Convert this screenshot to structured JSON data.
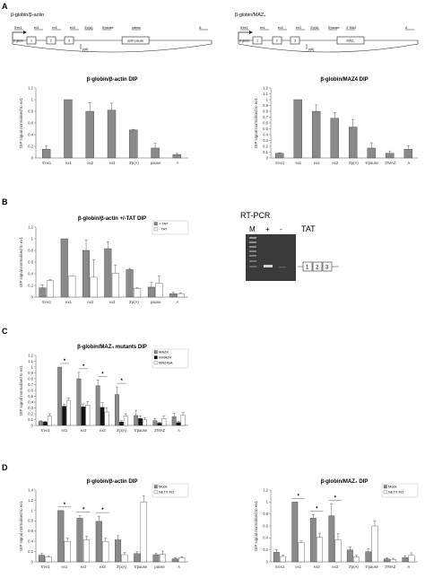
{
  "panels": {
    "A": "A",
    "B": "B",
    "C": "C",
    "D": "D"
  },
  "A": {
    "left_header": "β-globin/β-actin",
    "right_header": "β-globin/MAZ₄",
    "left_gene": {
      "labels": [
        "5'ex1",
        "ex1",
        "ex2",
        "ex3",
        "3'p(A)",
        "5'pause",
        "pause",
        "A"
      ],
      "box_labels": [
        "1",
        "2",
        "3",
        "actin pause"
      ],
      "promoter": "β-globin",
      "polyA": "p(A)"
    },
    "right_gene": {
      "labels": [
        "5'ex1",
        "ex1",
        "ex2",
        "ex3",
        "3'p(A)",
        "5'pause",
        "3' MAZ",
        "A"
      ],
      "box_labels": [
        "1",
        "2",
        "3",
        "MAZ₄"
      ],
      "promoter": "β-globin",
      "polyA": "p(A)"
    }
  },
  "B": {
    "rtpcr_title": "RT-PCR",
    "lanes": [
      "M",
      "+",
      "-"
    ],
    "tat_label": "TAT",
    "gene_boxes": [
      "1",
      "2",
      "3"
    ]
  },
  "chart_data": [
    {
      "type": "bar",
      "panel": "A-left",
      "title": "β-globin/β-actin DIP",
      "ylabel": "DIP signal normalised to ex1",
      "ylim": [
        0,
        1.2
      ],
      "yticks": [
        "0",
        "0.2",
        "0.4",
        "0.6",
        "0.8",
        "1",
        "1.2"
      ],
      "categories": [
        "5'ex1",
        "ex1",
        "ex2",
        "ex3",
        "3'p(A)",
        "pause",
        "A"
      ],
      "series": [
        {
          "color": "#8a8a8a",
          "values": [
            0.15,
            1.0,
            0.8,
            0.82,
            0.48,
            0.17,
            0.06
          ],
          "errors": [
            0.06,
            0,
            0.15,
            0.12,
            0.01,
            0.08,
            0.02
          ]
        }
      ]
    },
    {
      "type": "bar",
      "panel": "A-right",
      "title": "β-globin/MAZ4 DIP",
      "ylabel": "DIP signal normalised to ex1",
      "ylim": [
        0,
        1.2
      ],
      "yticks": [
        "0",
        "0.1",
        "0.2",
        "0.3",
        "0.4",
        "0.5",
        "0.6",
        "0.7",
        "0.8",
        "0.9",
        "1",
        "1.1",
        "1.2"
      ],
      "categories": [
        "5'ex1",
        "ex1",
        "ex2",
        "ex3",
        "3'p(A)",
        "5'pause",
        "3'MAZ",
        "A"
      ],
      "series": [
        {
          "color": "#8a8a8a",
          "values": [
            0.08,
            1.0,
            0.8,
            0.68,
            0.53,
            0.17,
            0.08,
            0.15
          ],
          "errors": [
            0.01,
            0,
            0.11,
            0.1,
            0.13,
            0.09,
            0.04,
            0.06
          ]
        }
      ]
    },
    {
      "type": "bar",
      "panel": "B",
      "title": "β-globin/β-actin +/-TAT DIP",
      "ylabel": "DIP signal normalised to ex1",
      "ylim": [
        0,
        1.2
      ],
      "yticks": [
        "0",
        "0.2",
        "0.4",
        "0.6",
        "0.8",
        "1",
        "1.2"
      ],
      "categories": [
        "5'ex1",
        "ex1",
        "ex2",
        "ex3",
        "3'p(A)",
        "pause",
        "A"
      ],
      "legend": [
        "+ TAT",
        "- TAT"
      ],
      "series": [
        {
          "name": "+ TAT",
          "color": "#8a8a8a",
          "values": [
            0.16,
            1.0,
            0.8,
            0.83,
            0.47,
            0.17,
            0.06
          ],
          "errors": [
            0.05,
            0,
            0.18,
            0.12,
            0.02,
            0.08,
            0.02
          ]
        },
        {
          "name": "- TAT",
          "color": "#ffffff",
          "values": [
            0.28,
            0.36,
            0.34,
            0.41,
            0.15,
            0.24,
            0.06
          ],
          "errors": [
            0.02,
            0,
            0.3,
            0.14,
            0.01,
            0.12,
            0.01
          ]
        }
      ]
    },
    {
      "type": "bar",
      "panel": "C",
      "title": "β-globin/MAZ₄ mutants DIP",
      "ylabel": "DIP signal normalised to ex1",
      "ylim": [
        0,
        1.2
      ],
      "yticks": [
        "0",
        "0.1",
        "0.2",
        "0.3",
        "0.4",
        "0.5",
        "0.6",
        "0.7",
        "0.8",
        "0.9",
        "1",
        "1.1",
        "1.2"
      ],
      "categories": [
        "5'ex1",
        "ex1",
        "ex2",
        "ex3",
        "3'p(A)",
        "5'pause",
        "3'MAZ",
        "A"
      ],
      "legend": [
        "MAZ4",
        "mMAZ4",
        "MAZ4pA"
      ],
      "series": [
        {
          "name": "MAZ4",
          "color": "#8a8a8a",
          "values": [
            0.07,
            1.0,
            0.8,
            0.68,
            0.53,
            0.17,
            0.08,
            0.15
          ],
          "errors": [
            0.01,
            0,
            0.11,
            0.1,
            0.13,
            0.09,
            0.04,
            0.06
          ]
        },
        {
          "name": "mMAZ4",
          "color": "#111111",
          "values": [
            0.06,
            0.33,
            0.32,
            0.31,
            0.06,
            0.12,
            0.04,
            0.05
          ],
          "errors": [
            0.01,
            0.03,
            0.05,
            0.08,
            0.02,
            0.04,
            0.01,
            0.02
          ]
        },
        {
          "name": "MAZ4pA",
          "color": "#ffffff",
          "values": [
            0.16,
            0.43,
            0.35,
            0.23,
            0.16,
            0.1,
            0.12,
            0.18
          ],
          "errors": [
            0.04,
            0.04,
            0.06,
            0.07,
            0.04,
            0.03,
            0.04,
            0.04
          ]
        }
      ],
      "annotations": [
        "*",
        "*",
        "*",
        "*"
      ]
    },
    {
      "type": "bar",
      "panel": "D-left",
      "title": "β-globin/β-actin DIP",
      "ylabel": "DIP signal normalised to ex1",
      "ylim": [
        0,
        1.4
      ],
      "yticks": [
        "0",
        "0.2",
        "0.4",
        "0.6",
        "0.8",
        "1",
        "1.2",
        "1.4"
      ],
      "categories": [
        "5'ex1",
        "ex1",
        "ex2",
        "ex3",
        "3'p(A)",
        "5'pause",
        "pause",
        "A"
      ],
      "legend": [
        "Mock",
        "SETX KD"
      ],
      "series": [
        {
          "name": "Mock",
          "color": "#8a8a8a",
          "values": [
            0.13,
            1.0,
            0.85,
            0.79,
            0.43,
            0.16,
            0.14,
            0.06
          ],
          "errors": [
            0.03,
            0,
            0.05,
            0.1,
            0.08,
            0.04,
            0.03,
            0.02
          ]
        },
        {
          "name": "SETX KD",
          "color": "#ffffff",
          "values": [
            0.1,
            0.4,
            0.43,
            0.4,
            0.14,
            1.17,
            0.15,
            0.08
          ],
          "errors": [
            0.02,
            0.06,
            0.07,
            0.06,
            0.04,
            0.12,
            0.06,
            0.02
          ]
        }
      ],
      "annotations": [
        "*",
        "*",
        "*"
      ]
    },
    {
      "type": "bar",
      "panel": "D-right",
      "title": "β-globin/MAZ₄ DIP",
      "ylabel": "DIP signal normalised to ex1",
      "ylim": [
        0,
        1.2
      ],
      "yticks": [
        "0",
        "0.2",
        "0.4",
        "0.6",
        "0.8",
        "1",
        "1.2"
      ],
      "categories": [
        "5'ex1",
        "ex1",
        "ex2",
        "ex3",
        "3'p(A)",
        "5'pause",
        "3'MAZ",
        "A"
      ],
      "legend": [
        "Mock",
        "SETX KD"
      ],
      "series": [
        {
          "name": "Mock",
          "color": "#8a8a8a",
          "values": [
            0.16,
            1.0,
            0.73,
            0.77,
            0.2,
            0.17,
            0.05,
            0.07
          ],
          "errors": [
            0.04,
            0,
            0.06,
            0.2,
            0.05,
            0.05,
            0.02,
            0.03
          ]
        },
        {
          "name": "SETX KD",
          "color": "#ffffff",
          "values": [
            0.09,
            0.32,
            0.41,
            0.37,
            0.08,
            0.6,
            0.04,
            0.11
          ],
          "errors": [
            0.02,
            0.03,
            0.07,
            0.1,
            0.03,
            0.08,
            0.02,
            0.04
          ]
        }
      ],
      "annotations": [
        "*",
        "*",
        "*"
      ]
    }
  ]
}
